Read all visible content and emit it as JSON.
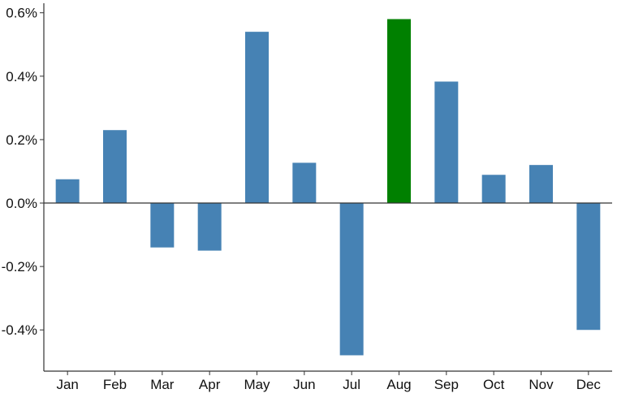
{
  "chart_data": {
    "type": "bar",
    "title": "",
    "xlabel": "",
    "ylabel": "",
    "categories": [
      "Jan",
      "Feb",
      "Mar",
      "Apr",
      "May",
      "Jun",
      "Jul",
      "Aug",
      "Sep",
      "Oct",
      "Nov",
      "Dec"
    ],
    "values": [
      0.075,
      0.23,
      -0.14,
      -0.15,
      0.54,
      0.127,
      -0.48,
      0.58,
      0.383,
      0.089,
      0.12,
      -0.4
    ],
    "ylim": [
      -0.53,
      0.63
    ],
    "yticks": [
      -0.4,
      -0.2,
      0.0,
      0.2,
      0.4,
      0.6
    ],
    "ytick_labels": [
      "-0.4%",
      "-0.2%",
      "0.0%",
      "0.2%",
      "0.4%",
      "0.6%"
    ],
    "grid": false,
    "legend": "none",
    "highlight_category": "Aug",
    "colors": {
      "bar": "#4682b4",
      "highlight": "#008000",
      "axis": "#333333"
    }
  }
}
